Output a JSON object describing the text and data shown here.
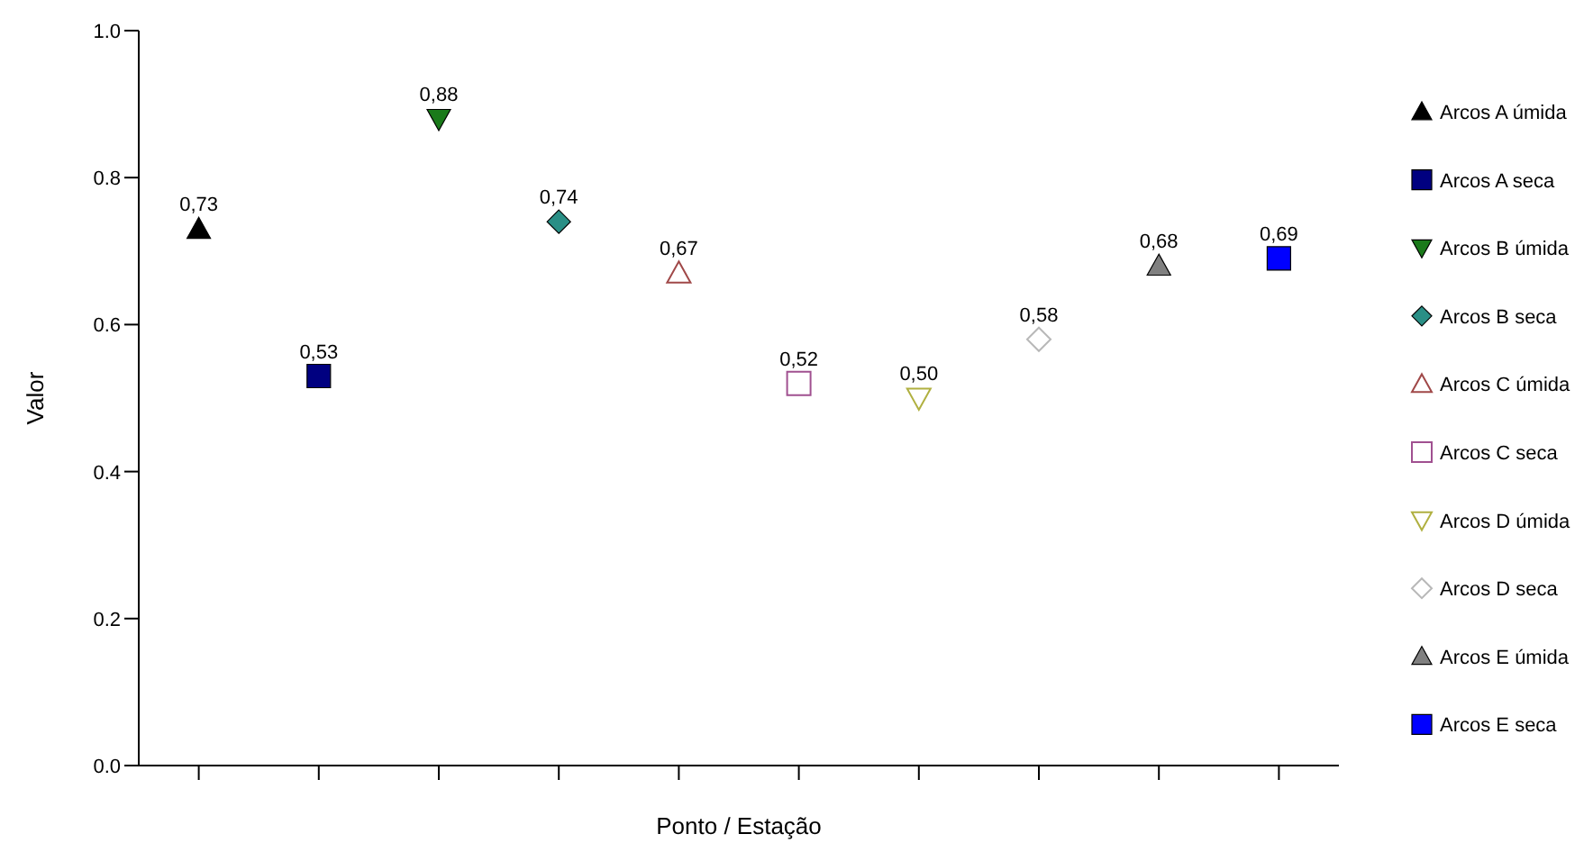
{
  "chart_data": {
    "type": "scatter",
    "xlabel": "Ponto / Estação",
    "ylabel": "Valor",
    "categories": [
      null,
      null,
      null,
      null,
      null,
      null,
      null,
      null,
      null,
      null
    ],
    "ylim": [
      0,
      1
    ],
    "yticks": [
      {
        "value": 0,
        "label": "0.0"
      },
      {
        "value": 0.2,
        "label": "0.2"
      },
      {
        "value": 0.4,
        "label": "0.4"
      },
      {
        "value": 0.6,
        "label": "0.6"
      },
      {
        "value": 0.8,
        "label": "0.8"
      },
      {
        "value": 1,
        "label": "1.0"
      }
    ],
    "grid": false,
    "legend": "right",
    "series": [
      {
        "name": "Arcos A úmida",
        "color": "#000000",
        "marker": "triangle",
        "values": [
          0.73,
          null,
          null,
          null,
          null,
          null,
          null,
          null,
          null,
          null
        ],
        "value_labels": [
          "0,73",
          null,
          null,
          null,
          null,
          null,
          null,
          null,
          null,
          null
        ]
      },
      {
        "name": "Arcos A seca",
        "color": "#000080",
        "marker": "square",
        "values": [
          null,
          0.53,
          null,
          null,
          null,
          null,
          null,
          null,
          null,
          null
        ],
        "value_labels": [
          null,
          "0,53",
          null,
          null,
          null,
          null,
          null,
          null,
          null,
          null
        ]
      },
      {
        "name": "Arcos B úmida",
        "color": "#1a7a1a",
        "marker": "triangle-down",
        "values": [
          null,
          null,
          0.88,
          null,
          null,
          null,
          null,
          null,
          null,
          null
        ],
        "value_labels": [
          null,
          null,
          "0,88",
          null,
          null,
          null,
          null,
          null,
          null,
          null
        ]
      },
      {
        "name": "Arcos B seca",
        "color": "#2a8f86",
        "marker": "diamond",
        "values": [
          null,
          null,
          null,
          0.74,
          null,
          null,
          null,
          null,
          null,
          null
        ],
        "value_labels": [
          null,
          null,
          null,
          "0,74",
          null,
          null,
          null,
          null,
          null,
          null
        ]
      },
      {
        "name": "Arcos C úmida",
        "color": "#a04848",
        "marker": "triangle-open",
        "values": [
          null,
          null,
          null,
          null,
          0.67,
          null,
          null,
          null,
          null,
          null
        ],
        "value_labels": [
          null,
          null,
          null,
          null,
          "0,67",
          null,
          null,
          null,
          null,
          null
        ]
      },
      {
        "name": "Arcos C seca",
        "color": "#a05090",
        "marker": "square-open",
        "values": [
          null,
          null,
          null,
          null,
          null,
          0.52,
          null,
          null,
          null,
          null
        ],
        "value_labels": [
          null,
          null,
          null,
          null,
          null,
          "0,52",
          null,
          null,
          null,
          null
        ]
      },
      {
        "name": "Arcos D úmida",
        "color": "#b0b040",
        "marker": "triangle-down-open",
        "values": [
          null,
          null,
          null,
          null,
          null,
          null,
          0.5,
          null,
          null,
          null
        ],
        "value_labels": [
          null,
          null,
          null,
          null,
          null,
          null,
          "0,50",
          null,
          null,
          null
        ]
      },
      {
        "name": "Arcos D seca",
        "color": "#b8b8b8",
        "marker": "diamond-open",
        "values": [
          null,
          null,
          null,
          null,
          null,
          null,
          null,
          0.58,
          null,
          null
        ],
        "value_labels": [
          null,
          null,
          null,
          null,
          null,
          null,
          null,
          "0,58",
          null,
          null
        ]
      },
      {
        "name": "Arcos E úmida",
        "color": "#808080",
        "marker": "triangle",
        "values": [
          null,
          null,
          null,
          null,
          null,
          null,
          null,
          null,
          0.68,
          null
        ],
        "value_labels": [
          null,
          null,
          null,
          null,
          null,
          null,
          null,
          null,
          "0,68",
          null
        ]
      },
      {
        "name": "Arcos E seca",
        "color": "#0000ff",
        "marker": "square",
        "values": [
          null,
          null,
          null,
          null,
          null,
          null,
          null,
          null,
          null,
          0.69
        ],
        "value_labels": [
          null,
          null,
          null,
          null,
          null,
          null,
          null,
          null,
          null,
          "0,69"
        ]
      }
    ]
  }
}
